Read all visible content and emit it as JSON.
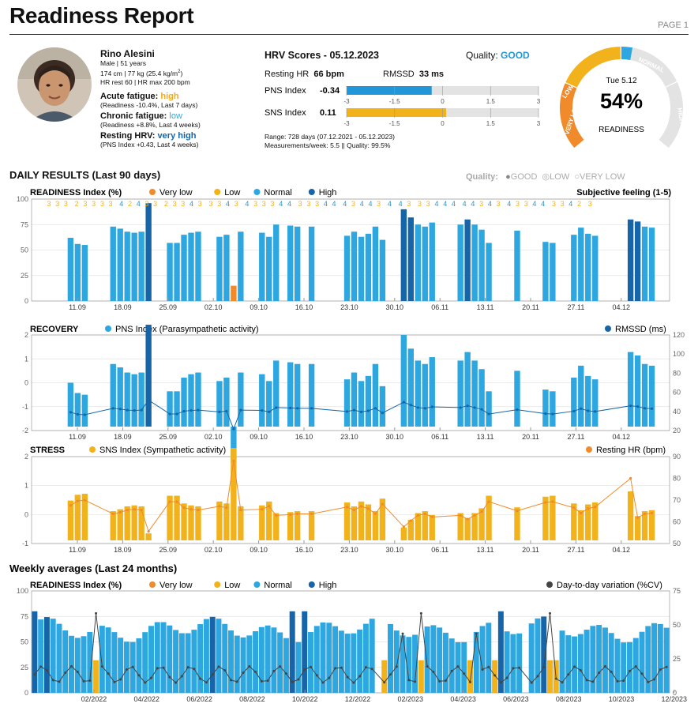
{
  "header": {
    "title": "Readiness Report",
    "page": "PAGE 1"
  },
  "profile": {
    "name": "Rino Alesini",
    "line1": "Male | 51 years",
    "line2_a": "174 cm | 77 kg (25.4 kg/m",
    "line2_sup": "2",
    "line2_b": ")",
    "line3": "HR rest 60 | HR max 200 bpm",
    "acute_label": "Acute fatigue:",
    "acute_value": "high",
    "acute_detail": "(Readiness -10.4%, Last 7 days)",
    "chronic_label": "Chronic fatigue:",
    "chronic_value": "low",
    "chronic_detail": "(Readiness +8.8%, Last 4 weeks)",
    "hrv_label": "Resting HRV:",
    "hrv_value": "very high",
    "hrv_detail": "(PNS Index +0.43, Last 4 weeks)"
  },
  "hrv_scores": {
    "title": "HRV Scores - 05.12.2023",
    "quality_label": "Quality:",
    "quality_value": "GOOD",
    "rhr_label": "Resting HR",
    "rhr_value": "66 bpm",
    "rmssd_label": "RMSSD",
    "rmssd_value": "33 ms",
    "pns_label": "PNS Index",
    "pns_value": "-0.34",
    "pns": -0.34,
    "sns_label": "SNS Index",
    "sns_value": "0.11",
    "sns": 0.11,
    "ticks": [
      "-3",
      "-1.5",
      "0",
      "1.5",
      "3"
    ],
    "range": "Range: 728 days (07.12.2021 - 05.12.2023)",
    "meas": "Measurements/week: 5.5  ||  Quality: 99.5%"
  },
  "gauge": {
    "date": "Tue 5.12",
    "value": "54%",
    "readiness": 0.54,
    "label": "READINESS",
    "bands": [
      "VERY LOW",
      "LOW",
      "NORMAL",
      "HIGH"
    ],
    "colors": {
      "very_low": "#f08a2a",
      "low": "#f2b21c",
      "normal": "#2ea7e0",
      "high": "#1565a8",
      "bg": "#e3e3e3"
    }
  },
  "daily": {
    "title": "DAILY RESULTS (Last 90 days)",
    "quality_label": "Quality:",
    "q_good": "GOOD",
    "q_low": "LOW",
    "q_vlow": "VERY LOW",
    "readiness_title": "READINESS Index (%)",
    "legend": [
      "Very low",
      "Low",
      "Normal",
      "High"
    ],
    "subjective": "Subjective feeling (1-5)",
    "recovery_title": "RECOVERY",
    "pns_legend": "PNS Index (Parasympathetic activity)",
    "rmssd_legend": "RMSSD (ms)",
    "stress_title": "STRESS",
    "sns_legend": "SNS Index (Sympathetic activity)",
    "hr_legend": "Resting HR (bpm)",
    "xticks": [
      "11.09",
      "18.09",
      "25.09",
      "02.10",
      "09.10",
      "16.10",
      "23.10",
      "30.10",
      "06.11",
      "13.11",
      "20.11",
      "27.11",
      "04.12"
    ]
  },
  "weekly": {
    "title": "Weekly averages (Last 24 months)",
    "readiness_title": "READINESS Index (%)",
    "legend": [
      "Very low",
      "Low",
      "Normal",
      "High"
    ],
    "cv_legend": "Day-to-day variation (%CV)",
    "xticks": [
      "02/2022",
      "04/2022",
      "06/2022",
      "08/2022",
      "10/2022",
      "12/2022",
      "02/2023",
      "04/2023",
      "06/2023",
      "08/2023",
      "10/2023",
      "12/2023"
    ]
  },
  "chart_data": [
    {
      "type": "bar",
      "title": "READINESS Index (%)",
      "ylim": [
        0,
        100
      ],
      "days": 90,
      "values": [
        null,
        null,
        null,
        null,
        null,
        62,
        56,
        55,
        null,
        null,
        null,
        73,
        71,
        68,
        67,
        68,
        96,
        null,
        null,
        57,
        57,
        65,
        67,
        68,
        null,
        null,
        63,
        65,
        15,
        68,
        null,
        null,
        67,
        63,
        75,
        null,
        74,
        73,
        null,
        73,
        null,
        null,
        null,
        null,
        64,
        68,
        63,
        66,
        73,
        60,
        null,
        null,
        90,
        82,
        75,
        73,
        77,
        null,
        null,
        null,
        75,
        80,
        75,
        70,
        57,
        null,
        null,
        null,
        69,
        null,
        null,
        null,
        58,
        57,
        null,
        null,
        65,
        72,
        66,
        64,
        null,
        null,
        null,
        null,
        80,
        78,
        73,
        72,
        null,
        null
      ],
      "subjective": "3 3 3  2 3 3 3 3  4 2 4 3 3  2 3 3 4 3  3 3 4 3  4 3 3 3 4 4  3 3 3 4 4  4 3 4 4 3  4  4 3  3 3 4 4 4  4 4 3 4 3  4 3 3 4 4  3 3 4 2  3"
    },
    {
      "type": "bar",
      "title": "RECOVERY",
      "y_left": [
        -2,
        2
      ],
      "y_right": [
        20,
        120
      ]
    },
    {
      "type": "bar",
      "title": "STRESS",
      "y_left": [
        -1,
        2
      ],
      "y_right": [
        50,
        90
      ]
    },
    {
      "type": "bar",
      "title": "Weekly averages (Last 24 months)",
      "ylim": [
        0,
        100
      ],
      "weeks": 104
    }
  ],
  "axes": {
    "r100": [
      "0",
      "25",
      "50",
      "75",
      "100"
    ],
    "rec_left": [
      "-2",
      "-1",
      "0",
      "1",
      "2"
    ],
    "rec_right": [
      "20",
      "40",
      "60",
      "80",
      "100",
      "120"
    ],
    "st_left": [
      "-1",
      "0",
      "1",
      "2"
    ],
    "st_right": [
      "50",
      "60",
      "70",
      "80",
      "90"
    ],
    "wk_right": [
      "0",
      "25",
      "50",
      "75"
    ]
  }
}
